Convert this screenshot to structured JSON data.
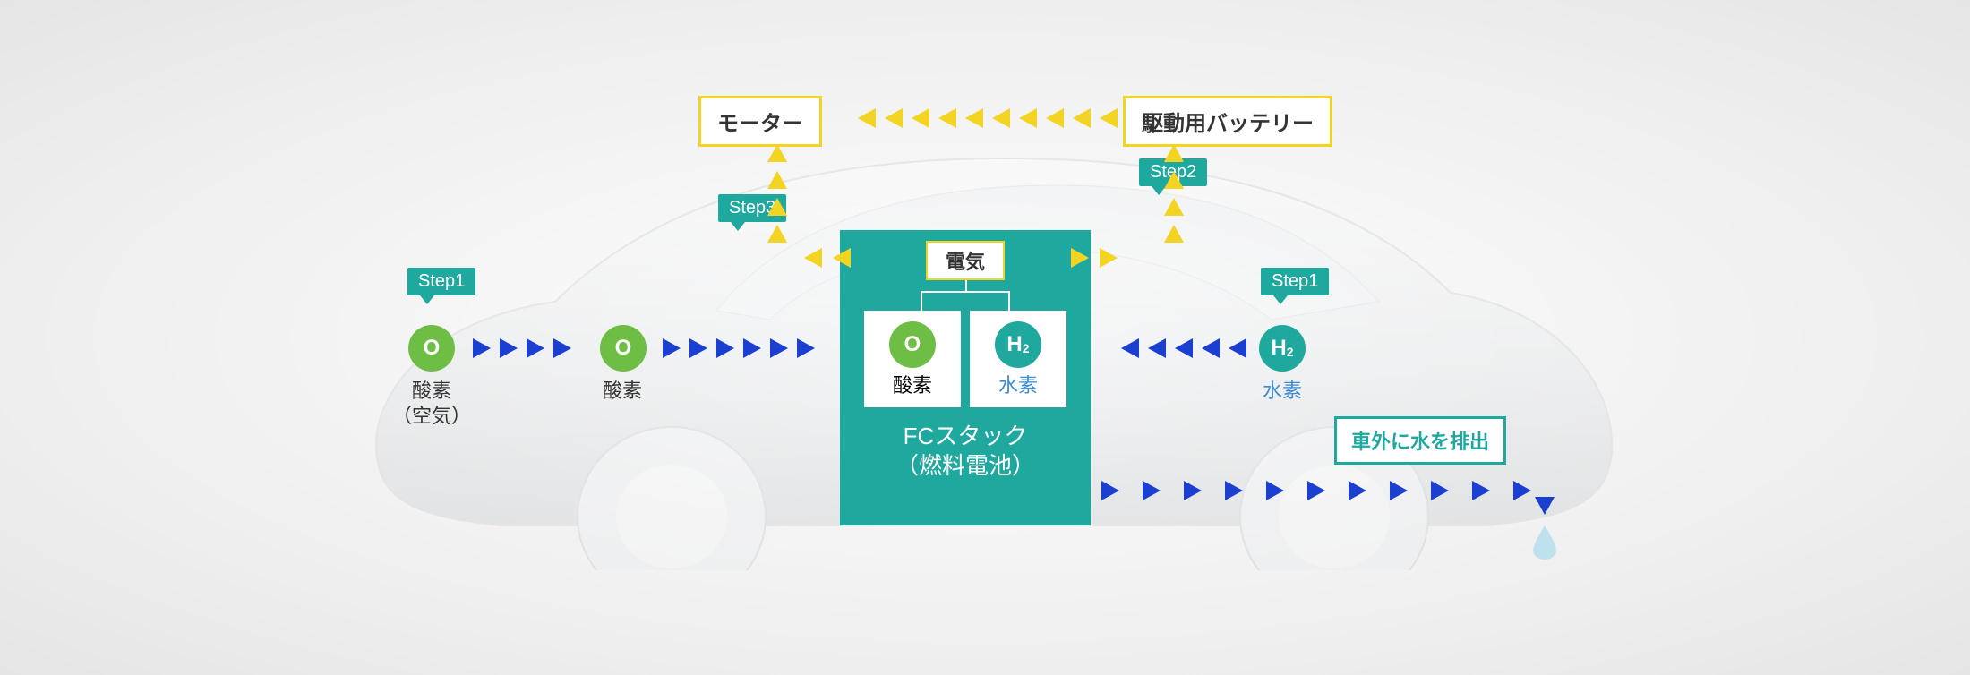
{
  "colors": {
    "teal": "#1ea89e",
    "yellow": "#f4d423",
    "blue": "#1b3fd1",
    "lightblue": "#3a8ad6",
    "green": "#6ebd45",
    "textDark": "#333333",
    "dropFill": "#bfe0ed"
  },
  "motor": {
    "label": "モーター"
  },
  "battery": {
    "label": "駆動用バッテリー"
  },
  "steps": {
    "s1": "Step1",
    "s2": "Step2",
    "s3": "Step3"
  },
  "oxygen": {
    "symbol": "O",
    "label": "酸素",
    "labelWithAir": "酸素\n（空気）"
  },
  "hydrogen": {
    "symbol": "H",
    "sub": "2",
    "label": "水素"
  },
  "fcStack": {
    "elec": "電気",
    "title": "FCスタック\n（燃料電池）",
    "oxygenLabel": "酸素",
    "hydrogenLabel": "水素"
  },
  "exhaust": {
    "label": "車外に水を排出"
  },
  "arrowLayout": {
    "spacing": 30,
    "size": 22
  }
}
